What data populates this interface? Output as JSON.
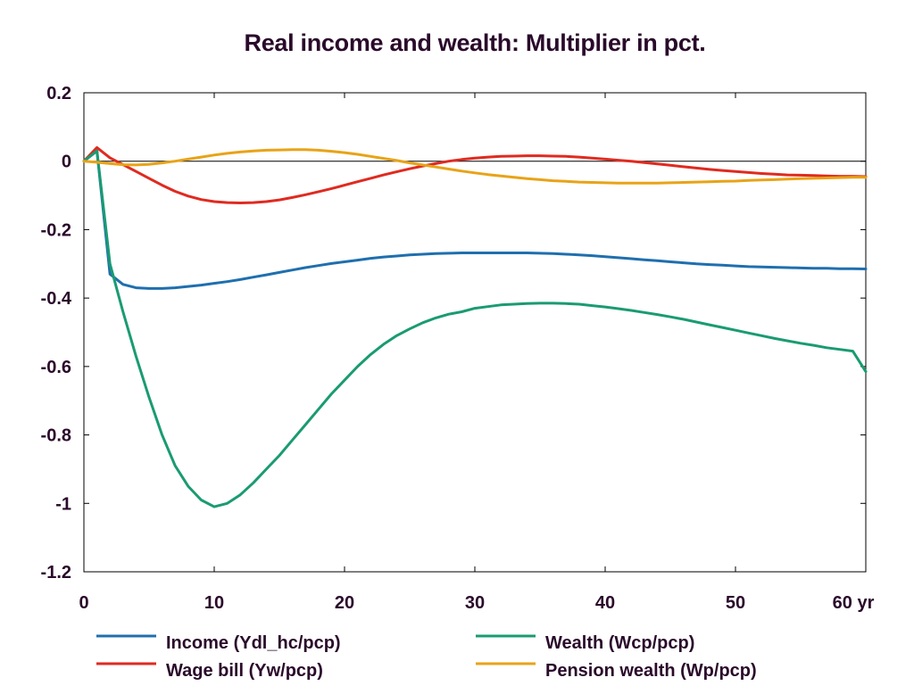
{
  "chart_data": {
    "type": "line",
    "title": "Real income and wealth: Multiplier in pct.",
    "xlabel": "",
    "ylabel": "",
    "x_unit": "yr",
    "xlim": [
      0,
      60
    ],
    "ylim": [
      -1.2,
      0.2
    ],
    "x_ticks": [
      0,
      10,
      20,
      30,
      40,
      50,
      60
    ],
    "x_tick_labels": [
      "0",
      "10",
      "20",
      "30",
      "40",
      "50",
      "60 yr"
    ],
    "y_ticks": [
      0.2,
      0,
      -0.2,
      -0.4,
      -0.6,
      -0.8,
      -1,
      -1.2
    ],
    "y_tick_labels": [
      "0.2",
      "0",
      "-0.2",
      "-0.4",
      "-0.6",
      "-0.8",
      "-1",
      "-1.2"
    ],
    "grid": false,
    "zero_line": true,
    "legend_position": "bottom",
    "x": [
      0,
      1,
      2,
      3,
      4,
      5,
      6,
      7,
      8,
      9,
      10,
      11,
      12,
      13,
      14,
      15,
      16,
      17,
      18,
      19,
      20,
      21,
      22,
      23,
      24,
      25,
      26,
      27,
      28,
      29,
      30,
      31,
      32,
      33,
      34,
      35,
      36,
      37,
      38,
      39,
      40,
      41,
      42,
      43,
      44,
      45,
      46,
      47,
      48,
      49,
      50,
      51,
      52,
      53,
      54,
      55,
      56,
      57,
      58,
      59,
      60
    ],
    "series": [
      {
        "name": "Income (Ydl_hc/pcp)",
        "color": "#1f6fae",
        "values": [
          0,
          0.03,
          -0.33,
          -0.36,
          -0.37,
          -0.372,
          -0.372,
          -0.37,
          -0.366,
          -0.362,
          -0.357,
          -0.352,
          -0.346,
          -0.339,
          -0.332,
          -0.325,
          -0.318,
          -0.311,
          -0.305,
          -0.299,
          -0.294,
          -0.289,
          -0.284,
          -0.28,
          -0.277,
          -0.274,
          -0.272,
          -0.27,
          -0.269,
          -0.268,
          -0.268,
          -0.268,
          -0.268,
          -0.268,
          -0.268,
          -0.269,
          -0.27,
          -0.272,
          -0.274,
          -0.276,
          -0.279,
          -0.282,
          -0.285,
          -0.288,
          -0.291,
          -0.294,
          -0.297,
          -0.3,
          -0.302,
          -0.304,
          -0.306,
          -0.308,
          -0.309,
          -0.31,
          -0.311,
          -0.312,
          -0.313,
          -0.313,
          -0.314,
          -0.314,
          -0.315
        ]
      },
      {
        "name": "Wage bill (Yw/pcp)",
        "color": "#e02a20",
        "values": [
          0,
          0.04,
          0.01,
          -0.01,
          -0.03,
          -0.05,
          -0.07,
          -0.088,
          -0.102,
          -0.112,
          -0.118,
          -0.121,
          -0.122,
          -0.121,
          -0.118,
          -0.113,
          -0.106,
          -0.098,
          -0.089,
          -0.08,
          -0.07,
          -0.06,
          -0.05,
          -0.04,
          -0.031,
          -0.022,
          -0.014,
          -0.007,
          0.0,
          0.005,
          0.009,
          0.012,
          0.014,
          0.015,
          0.016,
          0.016,
          0.015,
          0.014,
          0.012,
          0.009,
          0.006,
          0.003,
          0.0,
          -0.004,
          -0.008,
          -0.012,
          -0.016,
          -0.02,
          -0.024,
          -0.027,
          -0.03,
          -0.033,
          -0.036,
          -0.038,
          -0.04,
          -0.041,
          -0.042,
          -0.043,
          -0.044,
          -0.044,
          -0.045
        ]
      },
      {
        "name": "Wealth (Wcp/pcp)",
        "color": "#1a9b72",
        "values": [
          0,
          0.03,
          -0.3,
          -0.44,
          -0.57,
          -0.69,
          -0.8,
          -0.89,
          -0.95,
          -0.99,
          -1.01,
          -1.0,
          -0.975,
          -0.94,
          -0.9,
          -0.86,
          -0.815,
          -0.77,
          -0.725,
          -0.68,
          -0.64,
          -0.6,
          -0.565,
          -0.535,
          -0.51,
          -0.49,
          -0.472,
          -0.458,
          -0.447,
          -0.44,
          -0.43,
          -0.425,
          -0.42,
          -0.418,
          -0.416,
          -0.415,
          -0.415,
          -0.416,
          -0.418,
          -0.422,
          -0.426,
          -0.431,
          -0.436,
          -0.442,
          -0.448,
          -0.455,
          -0.462,
          -0.47,
          -0.478,
          -0.486,
          -0.494,
          -0.502,
          -0.51,
          -0.518,
          -0.525,
          -0.532,
          -0.538,
          -0.545,
          -0.55,
          -0.555,
          -0.615
        ]
      },
      {
        "name": "Pension wealth (Wp/pcp)",
        "color": "#e8a317",
        "values": [
          0,
          -0.003,
          -0.007,
          -0.01,
          -0.011,
          -0.009,
          -0.005,
          0.0,
          0.006,
          0.012,
          0.018,
          0.023,
          0.027,
          0.03,
          0.032,
          0.033,
          0.034,
          0.034,
          0.032,
          0.029,
          0.025,
          0.02,
          0.014,
          0.008,
          0.002,
          -0.005,
          -0.011,
          -0.017,
          -0.023,
          -0.029,
          -0.034,
          -0.039,
          -0.043,
          -0.047,
          -0.051,
          -0.054,
          -0.057,
          -0.059,
          -0.061,
          -0.062,
          -0.063,
          -0.064,
          -0.064,
          -0.064,
          -0.064,
          -0.063,
          -0.062,
          -0.061,
          -0.06,
          -0.059,
          -0.058,
          -0.056,
          -0.055,
          -0.054,
          -0.052,
          -0.051,
          -0.05,
          -0.049,
          -0.048,
          -0.047,
          -0.047
        ]
      }
    ]
  }
}
